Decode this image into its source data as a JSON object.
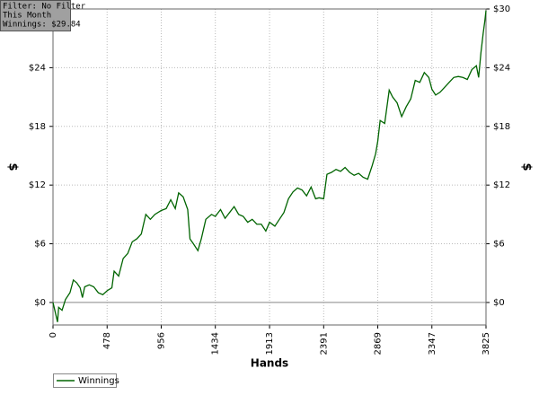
{
  "chart_data": {
    "type": "line",
    "annotations": [
      "Filter: No Filter",
      "This Month",
      "Winnings: $29.84"
    ],
    "ylabel": "$",
    "y2label": "$",
    "xlabel": "Hands",
    "xlim": [
      0,
      3825
    ],
    "xticks": [
      0,
      478,
      956,
      1434,
      1913,
      2391,
      2869,
      3347,
      3825
    ],
    "ylim": [
      -2.3,
      30
    ],
    "yticks": [
      {
        "value": 0,
        "label": "$0"
      },
      {
        "value": 6,
        "label": "$6"
      },
      {
        "value": 12,
        "label": "$12"
      },
      {
        "value": 18,
        "label": "$18"
      },
      {
        "value": 24,
        "label": "$24"
      },
      {
        "value": 30,
        "label": "$30"
      }
    ],
    "y2lim": [
      -2.3,
      30
    ],
    "y2ticks": [
      {
        "value": 0,
        "label": "$0"
      },
      {
        "value": 6,
        "label": "$6"
      },
      {
        "value": 12,
        "label": "$12"
      },
      {
        "value": 18,
        "label": "$18"
      },
      {
        "value": 24,
        "label": "$24"
      },
      {
        "value": 30,
        "label": "$30"
      }
    ],
    "grid": true,
    "legend": "bottom-left",
    "x": [
      0,
      20,
      40,
      50,
      80,
      110,
      150,
      180,
      210,
      240,
      260,
      280,
      320,
      360,
      400,
      440,
      478,
      520,
      540,
      580,
      620,
      660,
      700,
      740,
      780,
      820,
      860,
      900,
      956,
      1000,
      1040,
      1080,
      1110,
      1150,
      1190,
      1210,
      1240,
      1280,
      1310,
      1350,
      1400,
      1434,
      1480,
      1520,
      1560,
      1600,
      1640,
      1680,
      1720,
      1760,
      1800,
      1840,
      1880,
      1913,
      1960,
      2000,
      2040,
      2080,
      2120,
      2160,
      2200,
      2240,
      2280,
      2320,
      2350,
      2391,
      2420,
      2460,
      2500,
      2540,
      2580,
      2620,
      2660,
      2700,
      2740,
      2780,
      2820,
      2850,
      2869,
      2890,
      2930,
      2970,
      3000,
      3040,
      3080,
      3120,
      3160,
      3200,
      3240,
      3280,
      3320,
      3347,
      3380,
      3420,
      3460,
      3500,
      3540,
      3580,
      3620,
      3660,
      3700,
      3740,
      3760,
      3780,
      3800,
      3815,
      3825
    ],
    "series": [
      {
        "name": "Winnings",
        "color": "#006400",
        "values": [
          0,
          -1,
          -2,
          -0.5,
          -0.8,
          0.3,
          1,
          2.3,
          2.0,
          1.5,
          0.5,
          1.6,
          1.8,
          1.6,
          1.0,
          0.8,
          1.2,
          1.5,
          3.2,
          2.7,
          4.5,
          5.0,
          6.2,
          6.5,
          7.0,
          9.0,
          8.5,
          9.0,
          9.4,
          9.6,
          10.5,
          9.6,
          11.2,
          10.8,
          9.5,
          6.5,
          6.0,
          5.3,
          6.5,
          8.5,
          9.0,
          8.8,
          9.5,
          8.6,
          9.2,
          9.8,
          9.0,
          8.8,
          8.2,
          8.5,
          8.0,
          8.0,
          7.3,
          8.2,
          7.8,
          8.5,
          9.2,
          10.6,
          11.3,
          11.7,
          11.5,
          10.9,
          11.8,
          10.6,
          10.7,
          10.6,
          13.1,
          13.3,
          13.6,
          13.4,
          13.8,
          13.3,
          13.0,
          13.2,
          12.8,
          12.6,
          14.0,
          15.2,
          16.5,
          18.6,
          18.3,
          21.7,
          21.0,
          20.4,
          19.0,
          20.0,
          20.8,
          22.7,
          22.5,
          23.5,
          23.0,
          21.8,
          21.2,
          21.5,
          22.0,
          22.5,
          23.0,
          23.1,
          23.0,
          22.8,
          23.8,
          24.2,
          23.0,
          25.5,
          27.5,
          28.8,
          29.84
        ]
      }
    ]
  }
}
